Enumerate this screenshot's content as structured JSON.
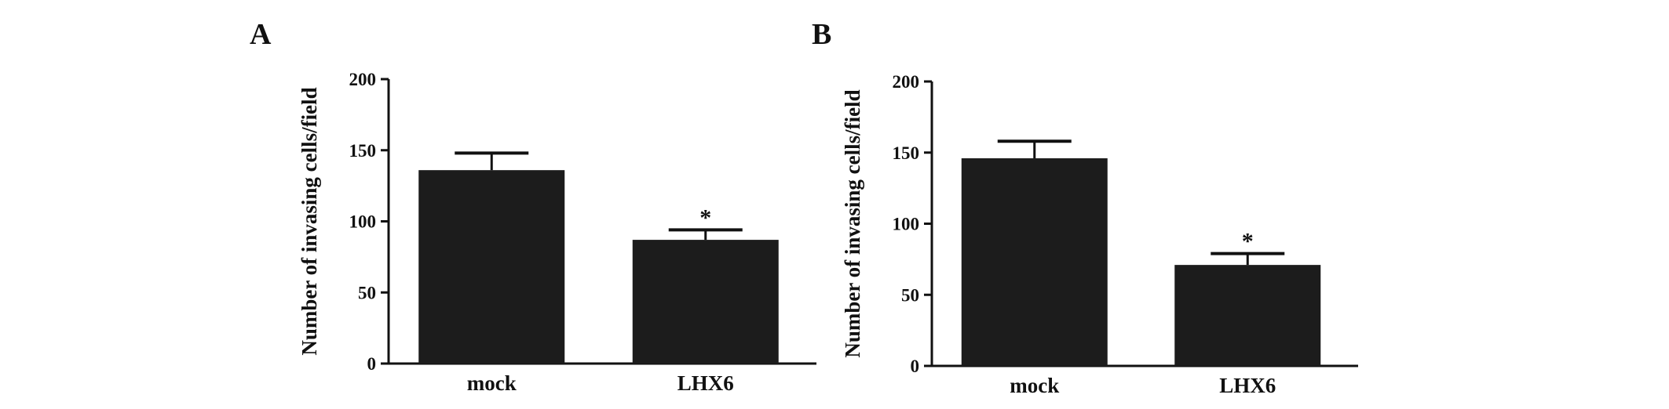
{
  "chart_data": [
    {
      "panel_label": "A",
      "type": "bar",
      "categories": [
        "mock",
        "LHX6"
      ],
      "values": [
        136,
        87
      ],
      "errors": [
        12,
        7
      ],
      "annotations": [
        "",
        "*"
      ],
      "ylabel": "Number of invasing cells/field",
      "xlabel": "",
      "ylim": [
        0,
        200
      ],
      "yticks": [
        "0",
        "50",
        "100",
        "150",
        "200"
      ],
      "bar_color": "#1c1c1c",
      "grid": false
    },
    {
      "panel_label": "B",
      "type": "bar",
      "categories": [
        "mock",
        "LHX6"
      ],
      "values": [
        146,
        71
      ],
      "errors": [
        12,
        8
      ],
      "annotations": [
        "",
        "*"
      ],
      "ylabel": "Number of invasing cells/field",
      "xlabel": "",
      "ylim": [
        0,
        200
      ],
      "yticks": [
        "0",
        "50",
        "100",
        "150",
        "200"
      ],
      "bar_color": "#1c1c1c",
      "grid": false
    }
  ]
}
